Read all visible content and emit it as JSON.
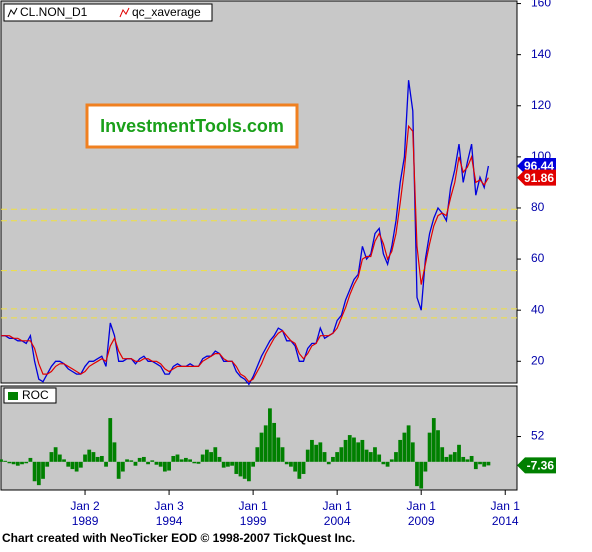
{
  "chart_data": [
    {
      "type": "line",
      "x": [
        1984.0,
        1984.25,
        1984.5,
        1984.75,
        1985.0,
        1985.25,
        1985.5,
        1985.75,
        1986.0,
        1986.25,
        1986.5,
        1986.75,
        1987.0,
        1987.25,
        1987.5,
        1987.75,
        1988.0,
        1988.25,
        1988.5,
        1988.75,
        1989.0,
        1989.25,
        1989.5,
        1989.75,
        1990.0,
        1990.25,
        1990.5,
        1990.75,
        1991.0,
        1991.25,
        1991.5,
        1991.75,
        1992.0,
        1992.25,
        1992.5,
        1992.75,
        1993.0,
        1993.25,
        1993.5,
        1993.75,
        1994.0,
        1994.25,
        1994.5,
        1994.75,
        1995.0,
        1995.25,
        1995.5,
        1995.75,
        1996.0,
        1996.25,
        1996.5,
        1996.75,
        1997.0,
        1997.25,
        1997.5,
        1997.75,
        1998.0,
        1998.25,
        1998.5,
        1998.75,
        1999.0,
        1999.25,
        1999.5,
        1999.75,
        2000.0,
        2000.25,
        2000.5,
        2000.75,
        2001.0,
        2001.25,
        2001.5,
        2001.75,
        2002.0,
        2002.25,
        2002.5,
        2002.75,
        2003.0,
        2003.25,
        2003.5,
        2003.75,
        2004.0,
        2004.25,
        2004.5,
        2004.75,
        2005.0,
        2005.25,
        2005.5,
        2005.75,
        2006.0,
        2006.25,
        2006.5,
        2006.75,
        2007.0,
        2007.25,
        2007.5,
        2007.75,
        2008.0,
        2008.25,
        2008.5,
        2008.75,
        2009.0,
        2009.25,
        2009.5,
        2009.75,
        2010.0,
        2010.25,
        2010.5,
        2010.75,
        2011.0,
        2011.25,
        2011.5,
        2011.75,
        2012.0,
        2012.25,
        2012.5,
        2012.75,
        2013.0
      ],
      "series": [
        {
          "name": "CL.NON_D1",
          "color": "#0000dd",
          "values": [
            30,
            30,
            29,
            29,
            28,
            28,
            27,
            30,
            20,
            13,
            12,
            15,
            18,
            20,
            20,
            19,
            17,
            16,
            15,
            15,
            18,
            20,
            20,
            21,
            22,
            18,
            35,
            30,
            20,
            20,
            21,
            21,
            19,
            21,
            22,
            20,
            20,
            19,
            18,
            15,
            15,
            18,
            19,
            18,
            18,
            19,
            18,
            18,
            21,
            22,
            22,
            24,
            23,
            20,
            20,
            20,
            16,
            14,
            13,
            11,
            14,
            18,
            22,
            25,
            28,
            30,
            33,
            32,
            28,
            28,
            26,
            20,
            20,
            25,
            27,
            27,
            33,
            29,
            30,
            31,
            36,
            38,
            44,
            48,
            52,
            54,
            65,
            60,
            62,
            70,
            72,
            62,
            58,
            65,
            75,
            90,
            100,
            130,
            118,
            45,
            40,
            60,
            70,
            76,
            80,
            78,
            75,
            88,
            95,
            105,
            90,
            98,
            105,
            85,
            92,
            88,
            96.44
          ]
        },
        {
          "name": "qc_xaverage",
          "color": "#e00000",
          "values": [
            30,
            30,
            30,
            29,
            29,
            28,
            28,
            28,
            25,
            19,
            15,
            15,
            16,
            18,
            19,
            19,
            18,
            17,
            16,
            15,
            16,
            18,
            19,
            20,
            21,
            20,
            26,
            29,
            24,
            21,
            21,
            21,
            20,
            20,
            21,
            21,
            20,
            20,
            19,
            17,
            16,
            17,
            18,
            18,
            18,
            18,
            18,
            18,
            20,
            21,
            22,
            23,
            23,
            21,
            20,
            20,
            18,
            15,
            14,
            12,
            13,
            16,
            19,
            23,
            26,
            29,
            31,
            32,
            30,
            28,
            27,
            23,
            21,
            23,
            26,
            27,
            30,
            30,
            30,
            31,
            33,
            37,
            41,
            46,
            50,
            53,
            60,
            61,
            61,
            67,
            70,
            66,
            60,
            63,
            70,
            82,
            95,
            112,
            110,
            65,
            50,
            58,
            66,
            73,
            77,
            78,
            77,
            84,
            90,
            100,
            94,
            96,
            100,
            90,
            91,
            89,
            91.86
          ]
        }
      ],
      "xlim": [
        1984.0,
        2014.7
      ],
      "xticks": [
        {
          "value": 1989,
          "label": "Jan 2"
        },
        {
          "value": 1994,
          "label": "Jan 3"
        },
        {
          "value": 1999,
          "label": "Jan 1"
        },
        {
          "value": 2004,
          "label": "Jan 1"
        },
        {
          "value": 2009,
          "label": "Jan 1"
        },
        {
          "value": 2014,
          "label": "Jan 1"
        }
      ],
      "ylim": [
        11.5,
        161
      ],
      "yticks": [
        20,
        40,
        60,
        80,
        100,
        120,
        140,
        160
      ],
      "hlines": [
        79.5,
        75,
        55.5,
        40.5,
        37
      ],
      "hline_color": "#f0e040",
      "annotation": "InvestmentTools.com",
      "footer": "Chart created with NeoTicker EOD © 1998-2007 TickQuest Inc."
    },
    {
      "type": "bar",
      "x": [
        1984.0,
        1984.25,
        1984.5,
        1984.75,
        1985.0,
        1985.25,
        1985.5,
        1985.75,
        1986.0,
        1986.25,
        1986.5,
        1986.75,
        1987.0,
        1987.25,
        1987.5,
        1987.75,
        1988.0,
        1988.25,
        1988.5,
        1988.75,
        1989.0,
        1989.25,
        1989.5,
        1989.75,
        1990.0,
        1990.25,
        1990.5,
        1990.75,
        1991.0,
        1991.25,
        1991.5,
        1991.75,
        1992.0,
        1992.25,
        1992.5,
        1992.75,
        1993.0,
        1993.25,
        1993.5,
        1993.75,
        1994.0,
        1994.25,
        1994.5,
        1994.75,
        1995.0,
        1995.25,
        1995.5,
        1995.75,
        1996.0,
        1996.25,
        1996.5,
        1996.75,
        1997.0,
        1997.25,
        1997.5,
        1997.75,
        1998.0,
        1998.25,
        1998.5,
        1998.75,
        1999.0,
        1999.25,
        1999.5,
        1999.75,
        2000.0,
        2000.25,
        2000.5,
        2000.75,
        2001.0,
        2001.25,
        2001.5,
        2001.75,
        2002.0,
        2002.25,
        2002.5,
        2002.75,
        2003.0,
        2003.25,
        2003.5,
        2003.75,
        2004.0,
        2004.25,
        2004.5,
        2004.75,
        2005.0,
        2005.25,
        2005.5,
        2005.75,
        2006.0,
        2006.25,
        2006.5,
        2006.75,
        2007.0,
        2007.25,
        2007.5,
        2007.75,
        2008.0,
        2008.25,
        2008.5,
        2008.75,
        2009.0,
        2009.25,
        2009.5,
        2009.75,
        2010.0,
        2010.25,
        2010.5,
        2010.75,
        2011.0,
        2011.25,
        2011.5,
        2011.75,
        2012.0,
        2012.25,
        2012.5,
        2012.75,
        2013.0
      ],
      "series": [
        {
          "name": "ROC",
          "color": "#008000",
          "values": [
            5,
            2,
            -3,
            -5,
            -8,
            -5,
            -3,
            8,
            -40,
            -48,
            -35,
            -10,
            20,
            30,
            15,
            5,
            -10,
            -15,
            -20,
            -12,
            15,
            25,
            20,
            10,
            12,
            -10,
            90,
            40,
            -35,
            -20,
            5,
            3,
            -8,
            8,
            10,
            -5,
            3,
            -6,
            -10,
            -20,
            -18,
            12,
            15,
            5,
            8,
            5,
            -3,
            -4,
            15,
            25,
            20,
            30,
            10,
            -12,
            -10,
            -8,
            -25,
            -30,
            -35,
            -40,
            -10,
            30,
            60,
            75,
            110,
            80,
            50,
            30,
            -5,
            -10,
            -20,
            -35,
            -25,
            25,
            45,
            35,
            40,
            20,
            -5,
            10,
            20,
            30,
            45,
            55,
            50,
            40,
            45,
            25,
            20,
            30,
            15,
            -5,
            -10,
            5,
            20,
            45,
            60,
            75,
            40,
            -50,
            -55,
            -20,
            60,
            90,
            65,
            30,
            10,
            15,
            20,
            35,
            10,
            5,
            12,
            -15,
            -5,
            -10,
            -7.36
          ]
        }
      ],
      "xlim": [
        1984.0,
        2014.7
      ],
      "ylim": [
        -58,
        156
      ],
      "yticks": [
        52
      ]
    }
  ]
}
